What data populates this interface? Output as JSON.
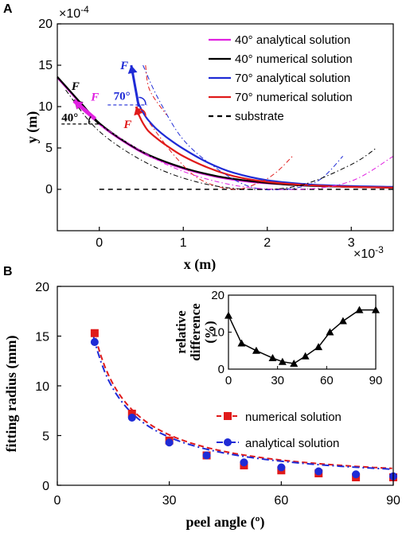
{
  "chart_data": [
    {
      "panel": "A",
      "type": "line",
      "xlabel": "x (m)",
      "ylabel": "y (m)",
      "x_exponent": "×10⁻³",
      "y_exponent": "×10⁻⁴",
      "xlim": [
        -0.0005,
        0.0035
      ],
      "ylim": [
        -0.0005,
        0.002
      ],
      "x_ticks": [
        0,
        1,
        2,
        3
      ],
      "y_ticks": [
        0,
        5,
        10,
        15,
        20
      ],
      "legend_position": "top-right",
      "legend": [
        {
          "name": "40° analytical solution",
          "color": "#e020e0",
          "dash": "solid"
        },
        {
          "name": "40° numerical solution",
          "color": "#000000",
          "dash": "solid"
        },
        {
          "name": "70° analytical solution",
          "color": "#1f2bd6",
          "dash": "solid"
        },
        {
          "name": "70° numerical solution",
          "color": "#e01a1a",
          "dash": "solid"
        },
        {
          "name": "substrate",
          "color": "#000000",
          "dash": "dashed"
        }
      ],
      "series": [
        {
          "name": "40° analytical solution",
          "color": "#e020e0",
          "x": [
            -0.0005,
            -0.00035,
            -0.0002,
            0.0,
            0.0003,
            0.0006,
            0.001,
            0.0014,
            0.0018,
            0.0022,
            0.0026,
            0.003,
            0.0035
          ],
          "y": [
            0.00135,
            0.00118,
            0.00101,
            0.00079,
            0.00057,
            0.0004,
            0.00025,
            0.00015,
            9e-05,
            6e-05,
            4e-05,
            3e-05,
            2e-05
          ]
        },
        {
          "name": "40° numerical solution",
          "color": "#000000",
          "x": [
            -0.0005,
            -0.00035,
            -0.0002,
            0.0,
            0.0003,
            0.0006,
            0.001,
            0.0014,
            0.0018,
            0.0022,
            0.0026,
            0.003,
            0.0035
          ],
          "y": [
            0.00136,
            0.00119,
            0.00102,
            0.0008,
            0.00058,
            0.00041,
            0.00026,
            0.00016,
            0.0001,
            6e-05,
            4e-05,
            3e-05,
            2e-05
          ]
        },
        {
          "name": "70° analytical solution",
          "color": "#1f2bd6",
          "x": [
            0.00045,
            0.00048,
            0.00052,
            0.00058,
            0.00068,
            0.0008,
            0.001,
            0.0013,
            0.0016,
            0.002,
            0.0025,
            0.003,
            0.0035
          ],
          "y": [
            0.00108,
            0.00101,
            0.00093,
            0.00084,
            0.00073,
            0.00063,
            0.00049,
            0.00032,
            0.0002,
            0.00011,
            6e-05,
            4e-05,
            3e-05
          ]
        },
        {
          "name": "70° numerical solution",
          "color": "#e01a1a",
          "x": [
            0.00045,
            0.00048,
            0.00052,
            0.00058,
            0.00068,
            0.0008,
            0.001,
            0.0013,
            0.0016,
            0.002,
            0.0025,
            0.003,
            0.0035
          ],
          "y": [
            0.00095,
            0.00088,
            0.0008,
            0.00071,
            0.00062,
            0.00053,
            0.0004,
            0.00026,
            0.00016,
            9e-05,
            5e-05,
            3e-05,
            2e-05
          ]
        },
        {
          "name": "substrate",
          "color": "#000000",
          "x": [
            0.0,
            0.0035
          ],
          "y": [
            0.0,
            0.0
          ]
        }
      ],
      "annotations": [
        {
          "text": "F",
          "color": "#000000"
        },
        {
          "text": "F",
          "color": "#e020e0"
        },
        {
          "text": "40°",
          "color": "#000000"
        },
        {
          "text": "F",
          "color": "#1f2bd6"
        },
        {
          "text": "70°",
          "color": "#1f2bd6"
        },
        {
          "text": "F",
          "color": "#e01a1a"
        }
      ]
    },
    {
      "panel": "B",
      "type": "line",
      "xlabel": "peel angle (º)",
      "ylabel": "fitting radius (mm)",
      "xlim": [
        0,
        90
      ],
      "ylim": [
        0,
        20
      ],
      "x_ticks": [
        0,
        30,
        60,
        90
      ],
      "y_ticks": [
        0,
        5,
        10,
        15,
        20
      ],
      "legend_position": "bottom-right",
      "categories": [
        10,
        20,
        30,
        40,
        50,
        60,
        70,
        80,
        90
      ],
      "series": [
        {
          "name": "numerical solution",
          "color": "#e01a1a",
          "marker": "square",
          "values": [
            15.3,
            7.2,
            4.5,
            3.0,
            2.0,
            1.5,
            1.2,
            0.8,
            0.8
          ]
        },
        {
          "name": "analytical solution",
          "color": "#1f2bd6",
          "marker": "circle",
          "values": [
            14.4,
            6.8,
            4.3,
            3.0,
            2.3,
            1.8,
            1.4,
            1.1,
            0.9
          ]
        }
      ],
      "inset": {
        "type": "line",
        "ylabel": "relative difference (%)",
        "xlim": [
          0,
          90
        ],
        "ylim": [
          0,
          20
        ],
        "x_ticks": [
          0,
          30,
          60,
          90
        ],
        "y_ticks": [
          0,
          10,
          20
        ],
        "marker": "triangle",
        "x": [
          0,
          8,
          17,
          27,
          33,
          40,
          47,
          55,
          62,
          70,
          80,
          90
        ],
        "y": [
          14.5,
          7,
          5,
          3,
          2,
          1.5,
          3.5,
          6,
          10,
          13,
          16,
          16
        ]
      }
    }
  ],
  "labels": {
    "panel_a": "A",
    "panel_b": "B",
    "a_xlabel": "x (m)",
    "a_ylabel": "y (m)",
    "a_xexp": "×10",
    "a_xexp_pow": "-3",
    "a_yexp": "×10",
    "a_yexp_pow": "-4",
    "b_xlabel": "peel angle (º)",
    "b_ylabel": "fitting radius (mm)",
    "inset_ylabel_1": "relative",
    "inset_ylabel_2": "difference",
    "inset_ylabel_3": "(%)"
  }
}
